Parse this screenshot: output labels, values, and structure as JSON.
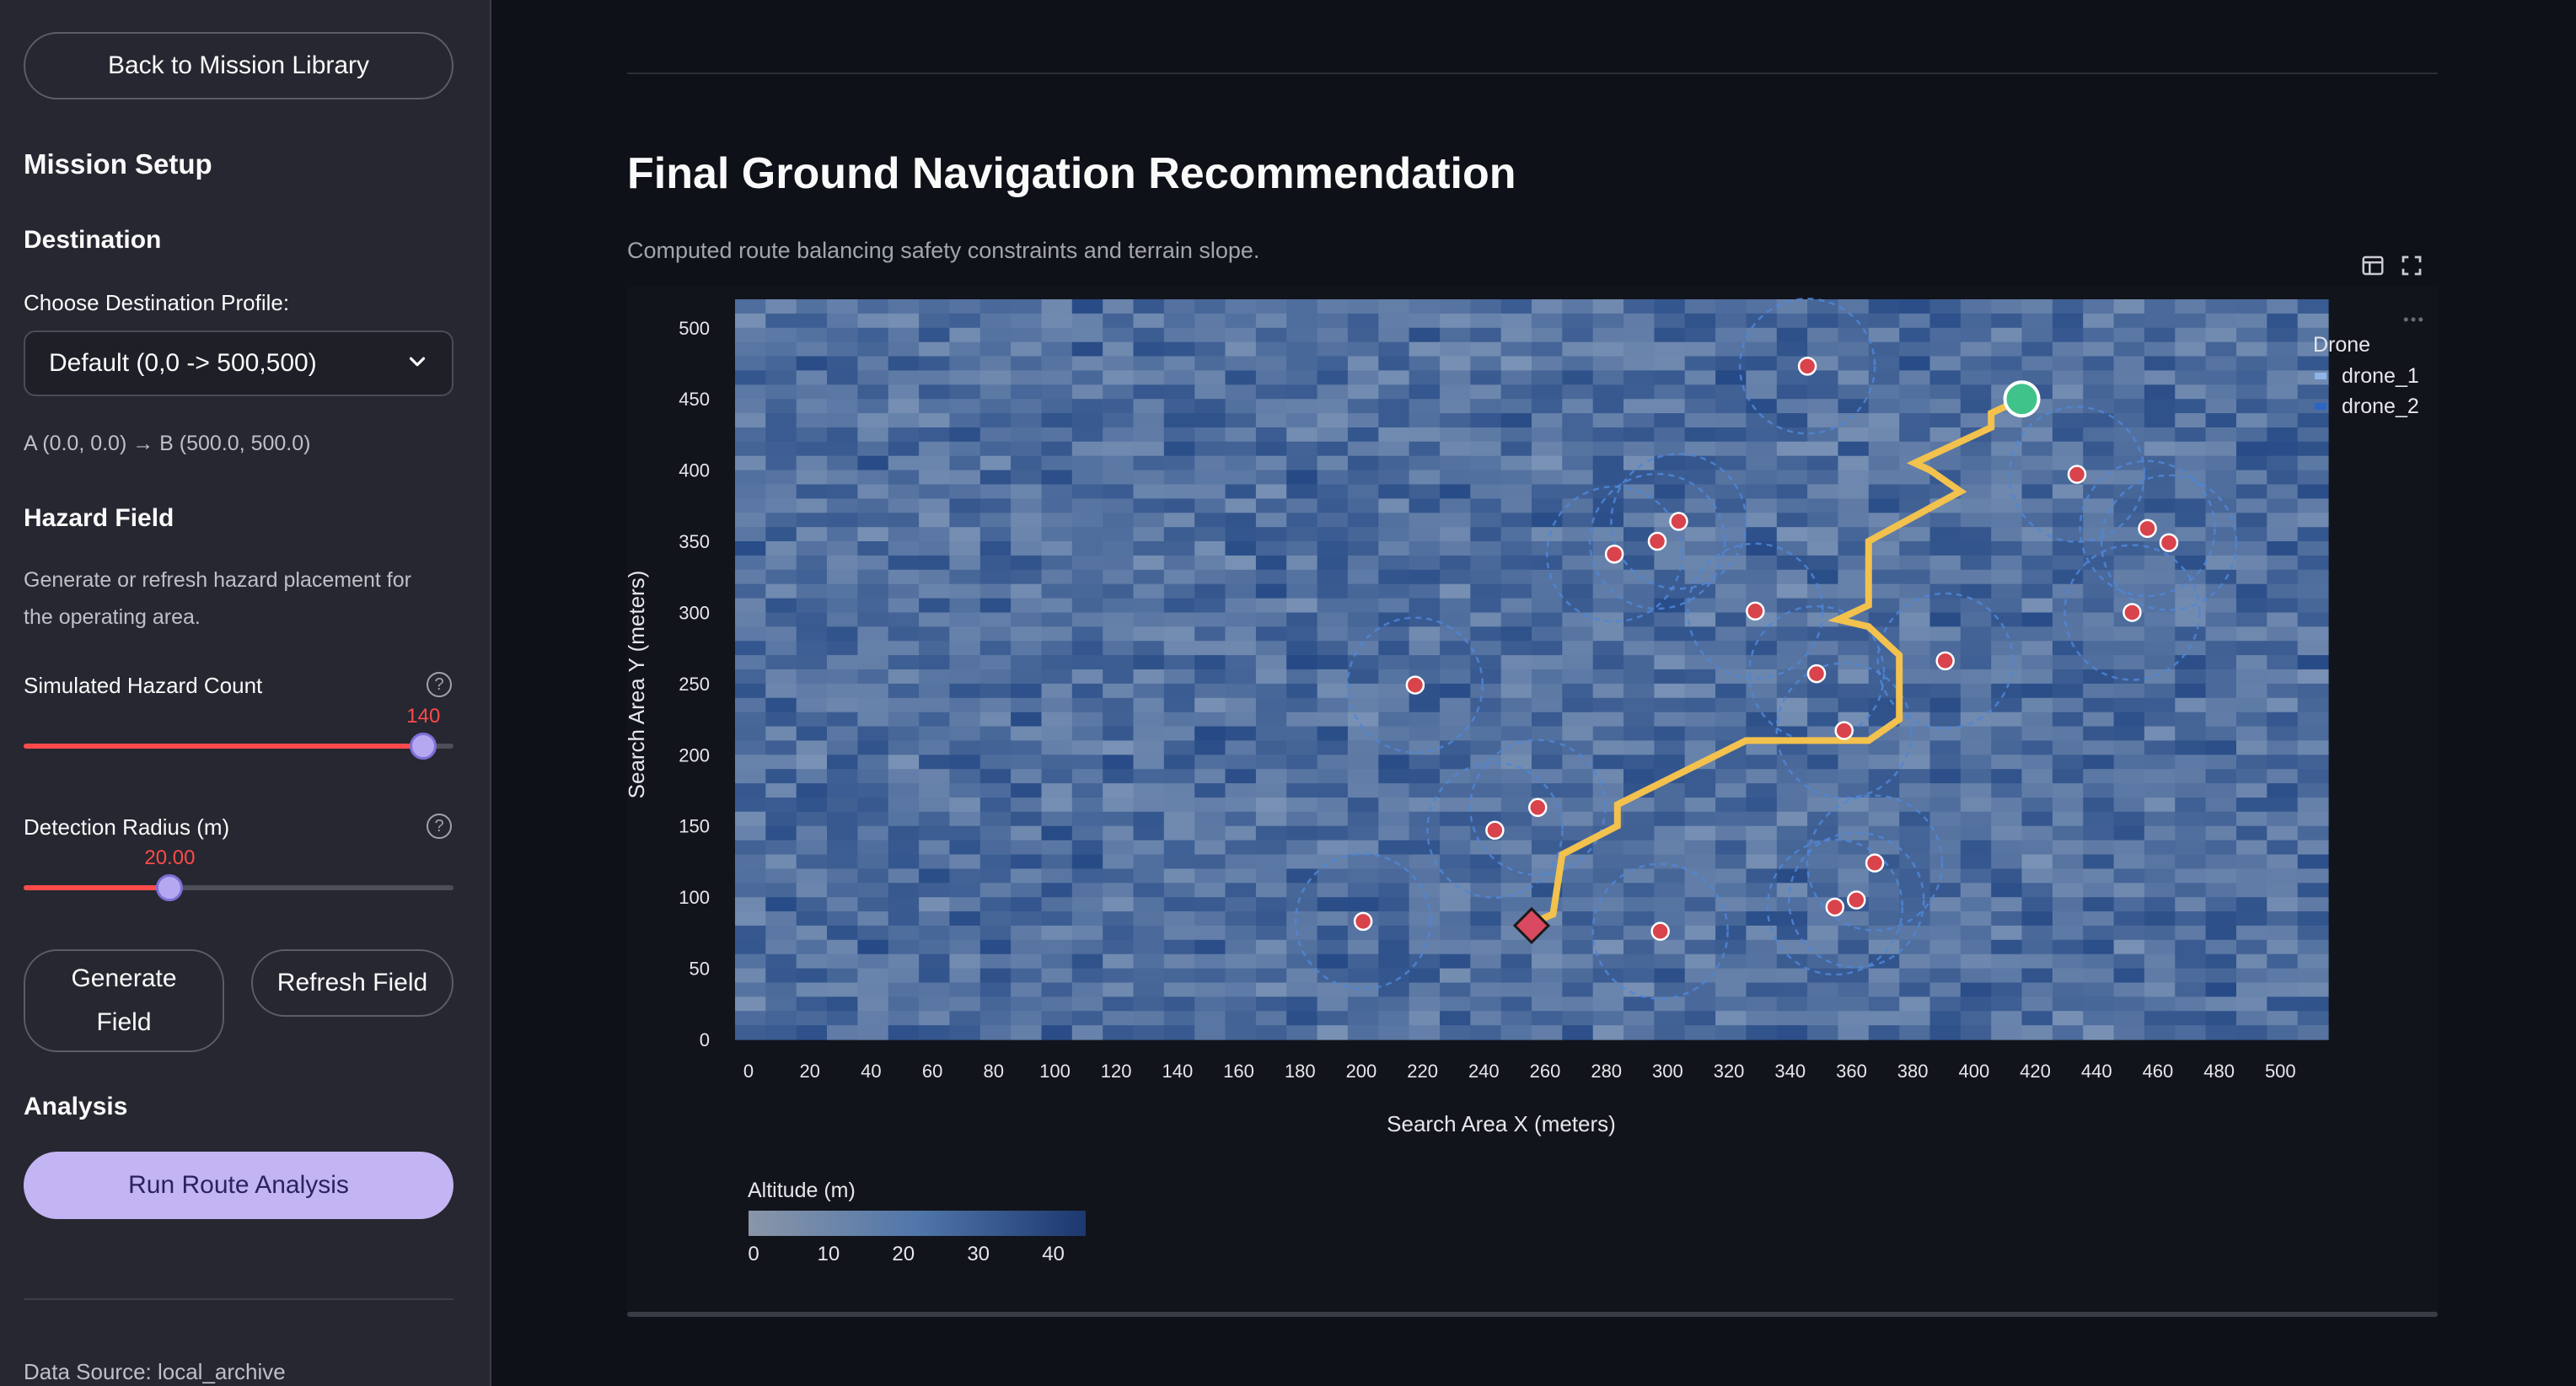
{
  "sidebar": {
    "back_button": "Back to Mission Library",
    "mission_setup": "Mission Setup",
    "destination_heading": "Destination",
    "destination_label": "Choose Destination Profile:",
    "destination_selected": "Default (0,0 -> 500,500)",
    "destination_caption": "A (0.0, 0.0) → B (500.0, 500.0)",
    "hazard_heading": "Hazard Field",
    "hazard_desc_line1": "Generate or refresh hazard placement for",
    "hazard_desc_line2": "the operating area.",
    "hazard_count_label": "Simulated Hazard Count",
    "hazard_count_value": "140",
    "hazard_count_fraction": 0.93,
    "radius_label": "Detection Radius (m)",
    "radius_value": "20.00",
    "radius_fraction": 0.34,
    "generate_line1": "Generate",
    "generate_line2": "Field",
    "refresh_button": "Refresh Field",
    "analysis_heading": "Analysis",
    "run_button": "Run Route Analysis",
    "data_source": "Data Source: local_archive"
  },
  "main": {
    "title": "Final Ground Navigation Recommendation",
    "subtitle": "Computed route balancing safety constraints and terrain slope."
  },
  "chart_data": {
    "type": "heatmap",
    "xlabel": "Search Area X (meters)",
    "ylabel": "Search Area Y (meters)",
    "xlim": [
      0,
      520
    ],
    "ylim": [
      0,
      520
    ],
    "x_ticks": [
      0,
      20,
      40,
      60,
      80,
      100,
      120,
      140,
      160,
      180,
      200,
      220,
      240,
      260,
      280,
      300,
      320,
      340,
      360,
      380,
      400,
      420,
      440,
      460,
      480,
      500
    ],
    "y_ticks": [
      0,
      50,
      100,
      150,
      200,
      250,
      300,
      350,
      400,
      450,
      500
    ],
    "colorbar": {
      "title": "Altitude (m)",
      "ticks": [
        0,
        10,
        20,
        30,
        40
      ],
      "range": [
        0,
        45
      ]
    },
    "legend": {
      "title": "Drone",
      "entries": [
        "drone_1",
        "drone_2"
      ],
      "placement": "top-right"
    },
    "route": [
      [
        258,
        80
      ],
      [
        267,
        88
      ],
      [
        270,
        130
      ],
      [
        288,
        150
      ],
      [
        288,
        165
      ],
      [
        330,
        210
      ],
      [
        370,
        210
      ],
      [
        380,
        225
      ],
      [
        380,
        270
      ],
      [
        370,
        290
      ],
      [
        360,
        295
      ],
      [
        370,
        305
      ],
      [
        370,
        350
      ],
      [
        400,
        385
      ],
      [
        390,
        400
      ],
      [
        385,
        405
      ],
      [
        410,
        430
      ],
      [
        410,
        440
      ],
      [
        420,
        450
      ]
    ],
    "start": {
      "x": 260,
      "y": 80
    },
    "end": {
      "x": 420,
      "y": 450
    },
    "hazards": [
      [
        205,
        83
      ],
      [
        262,
        163
      ],
      [
        248,
        147
      ],
      [
        222,
        249
      ],
      [
        287,
        341
      ],
      [
        301,
        350
      ],
      [
        308,
        364
      ],
      [
        333,
        301
      ],
      [
        353,
        257
      ],
      [
        362,
        217
      ],
      [
        372,
        124
      ],
      [
        366,
        98
      ],
      [
        359,
        93
      ],
      [
        302,
        76
      ],
      [
        395,
        266
      ],
      [
        350,
        473
      ],
      [
        438,
        397
      ],
      [
        461,
        359
      ],
      [
        468,
        349
      ],
      [
        456,
        300
      ]
    ],
    "hazard_radius": 20
  }
}
